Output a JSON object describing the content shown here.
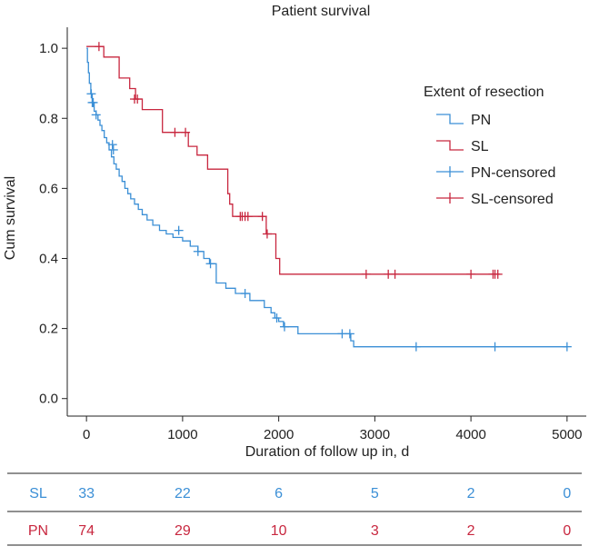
{
  "chart_data": {
    "type": "line",
    "title": "Patient survival",
    "xlabel": "Duration of follow up in, d",
    "ylabel": "Cum survival",
    "xlim": [
      -200,
      5200
    ],
    "ylim": [
      -0.05,
      1.06
    ],
    "xticks": [
      0,
      1000,
      2000,
      3000,
      4000,
      5000
    ],
    "xtick_labels": [
      "0",
      "1000",
      "2000",
      "3000",
      "4000",
      "5000"
    ],
    "yticks": [
      0.0,
      0.2,
      0.4,
      0.6,
      0.8,
      1.0
    ],
    "ytick_labels": [
      "0.0",
      "0.2",
      "0.4",
      "0.6",
      "0.8",
      "1.0"
    ],
    "legend": {
      "title": "Extent of resection",
      "placement": "top-right",
      "entries": [
        {
          "label": "PN",
          "color": "#3b8fd6",
          "style": "step"
        },
        {
          "label": "SL",
          "color": "#c8273f",
          "style": "step"
        },
        {
          "label": "PN-censored",
          "color": "#3b8fd6",
          "style": "plus"
        },
        {
          "label": "SL-censored",
          "color": "#c8273f",
          "style": "plus"
        }
      ]
    },
    "series": [
      {
        "name": "PN",
        "color": "#3b8fd6",
        "x": [
          0,
          10,
          20,
          30,
          45,
          60,
          80,
          100,
          120,
          140,
          160,
          185,
          210,
          235,
          260,
          285,
          310,
          340,
          370,
          400,
          430,
          460,
          500,
          540,
          580,
          630,
          690,
          760,
          830,
          900,
          1000,
          1080,
          1160,
          1220,
          1280,
          1350,
          1450,
          1550,
          1700,
          1850,
          1920,
          1960,
          2000,
          2050,
          2200,
          2750,
          2780,
          5000
        ],
        "y": [
          1.0,
          0.96,
          0.93,
          0.9,
          0.87,
          0.845,
          0.82,
          0.81,
          0.795,
          0.78,
          0.765,
          0.745,
          0.73,
          0.71,
          0.69,
          0.67,
          0.655,
          0.635,
          0.62,
          0.6,
          0.585,
          0.57,
          0.555,
          0.54,
          0.525,
          0.51,
          0.495,
          0.48,
          0.47,
          0.46,
          0.45,
          0.435,
          0.42,
          0.4,
          0.385,
          0.33,
          0.315,
          0.3,
          0.28,
          0.26,
          0.245,
          0.23,
          0.22,
          0.205,
          0.185,
          0.165,
          0.148,
          0.148
        ],
        "censored_x": [
          50,
          60,
          70,
          100,
          270,
          280,
          960,
          1160,
          1290,
          1650,
          1980,
          2060,
          2660,
          2740,
          3430,
          4250,
          5000
        ],
        "censored_y": [
          0.87,
          0.845,
          0.845,
          0.81,
          0.725,
          0.71,
          0.48,
          0.42,
          0.385,
          0.3,
          0.23,
          0.205,
          0.185,
          0.185,
          0.148,
          0.148,
          0.148
        ]
      },
      {
        "name": "SL",
        "color": "#c8273f",
        "x": [
          0,
          180,
          340,
          450,
          510,
          580,
          720,
          790,
          1060,
          1150,
          1260,
          1470,
          1490,
          1520,
          1870,
          1970,
          2010,
          4300
        ],
        "y": [
          1.005,
          0.975,
          0.915,
          0.885,
          0.855,
          0.825,
          0.825,
          0.76,
          0.72,
          0.695,
          0.655,
          0.585,
          0.555,
          0.52,
          0.47,
          0.4,
          0.355,
          0.355
        ],
        "censored_x": [
          130,
          500,
          530,
          920,
          1030,
          1600,
          1620,
          1650,
          1680,
          1830,
          1880,
          2910,
          3140,
          3210,
          4000,
          4230,
          4250,
          4280
        ],
        "censored_y": [
          1.005,
          0.855,
          0.855,
          0.76,
          0.76,
          0.52,
          0.52,
          0.52,
          0.52,
          0.52,
          0.47,
          0.355,
          0.355,
          0.355,
          0.355,
          0.355,
          0.355,
          0.355
        ]
      }
    ],
    "risk_table": {
      "rows": [
        {
          "label": "SL",
          "color": "#3b8fd6",
          "values": [
            "33",
            "22",
            "6",
            "5",
            "2",
            "0"
          ]
        },
        {
          "label": "PN",
          "color": "#c8273f",
          "values": [
            "74",
            "29",
            "10",
            "3",
            "2",
            "0"
          ]
        }
      ]
    }
  }
}
